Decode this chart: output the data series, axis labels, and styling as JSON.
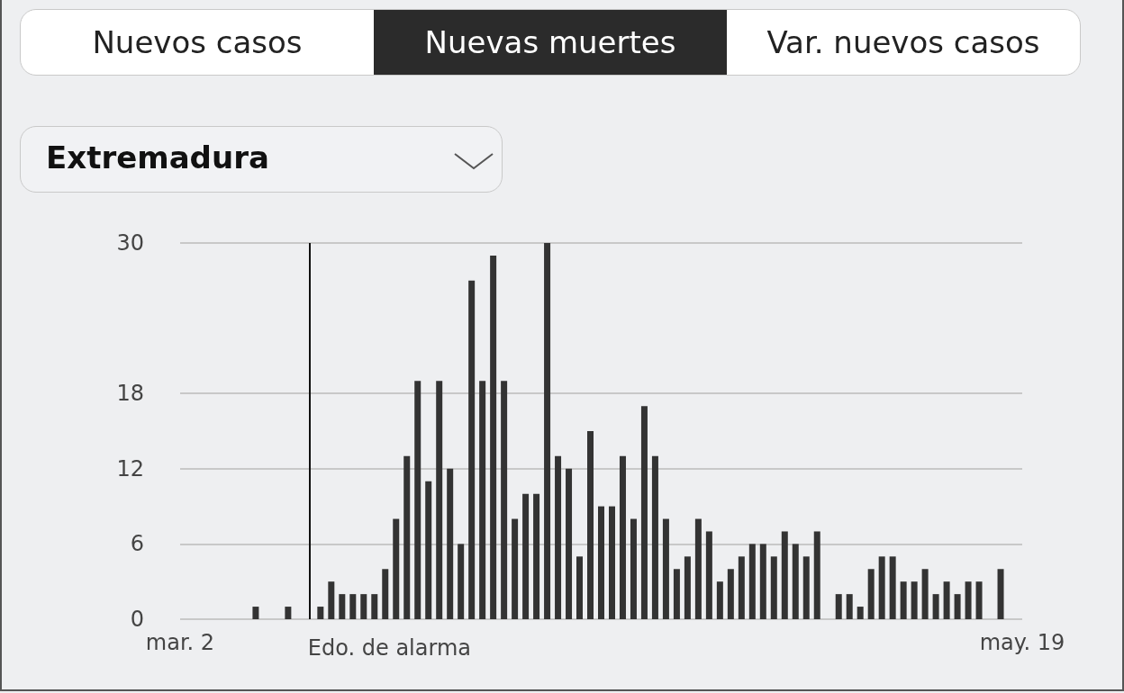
{
  "chart_data": {
    "type": "bar",
    "title": "Extremadura",
    "annotations": [
      "Nuevos casos",
      "Nuevas muertes",
      "Var. nuevos casos"
    ],
    "x": [
      "--03-09",
      "--03-12",
      "--03-15",
      "--03-16",
      "--03-17",
      "--03-18",
      "--03-19",
      "--03-20",
      "--03-21",
      "--03-22",
      "--03-23",
      "--03-24",
      "--03-25",
      "--03-26",
      "--03-27",
      "--03-28",
      "--03-29",
      "--03-30",
      "--03-31",
      "--04-01",
      "--04-02",
      "--04-03",
      "--04-04",
      "--04-05",
      "--04-06",
      "--04-07",
      "--04-08",
      "--04-09",
      "--04-10",
      "--04-11",
      "--04-12",
      "--04-13",
      "--04-14",
      "--04-15",
      "--04-16",
      "--04-17",
      "--04-18",
      "--04-19",
      "--04-20",
      "--04-21",
      "--04-22",
      "--04-23",
      "--04-24",
      "--04-25",
      "--04-26",
      "--04-27",
      "--04-28",
      "--04-29",
      "--04-30",
      "--05-02",
      "--05-03",
      "--05-04",
      "--05-05",
      "--05-06",
      "--05-07",
      "--05-08",
      "--05-09",
      "--05-10",
      "--05-11",
      "--05-12",
      "--05-13",
      "--05-14",
      "--05-15",
      "--05-17"
    ],
    "values": [
      1,
      1,
      1,
      3,
      2,
      2,
      2,
      2,
      4,
      8,
      13,
      19,
      11,
      19,
      12,
      6,
      27,
      19,
      29,
      19,
      8,
      10,
      10,
      30,
      13,
      12,
      5,
      15,
      9,
      9,
      13,
      8,
      17,
      13,
      8,
      4,
      5,
      8,
      7,
      3,
      4,
      5,
      6,
      6,
      5,
      7,
      6,
      5,
      7,
      2,
      2,
      1,
      4,
      5,
      5,
      3,
      3,
      4,
      2,
      3,
      2,
      3,
      3,
      4
    ],
    "color": "#333333",
    "xlim": [
      "--03-02",
      "--05-19"
    ],
    "xticks": [
      {
        "value": "--03-02",
        "label": "mar. 2"
      },
      {
        "value": "--05-19",
        "label": "may. 19"
      }
    ],
    "ylim": [
      0,
      30
    ],
    "yticks": [
      0,
      6,
      12,
      18,
      30
    ],
    "grid": "y",
    "ref_lines": [
      {
        "axis": "x",
        "value": "--03-14",
        "label": "Edo. de alarma",
        "color": "#111111"
      }
    ]
  }
}
